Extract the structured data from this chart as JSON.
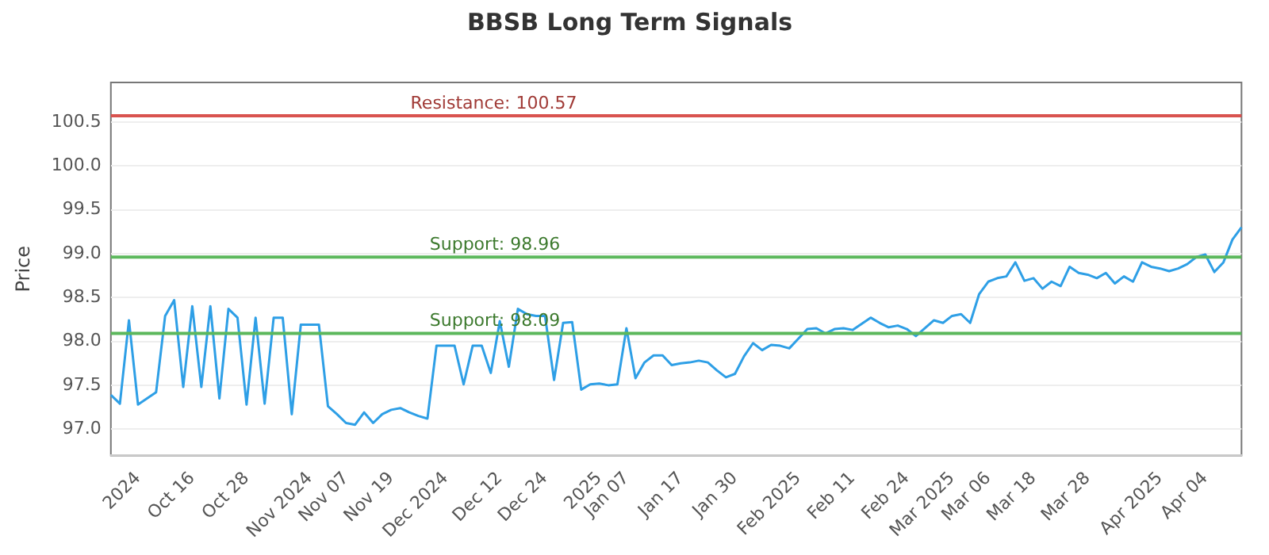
{
  "chart_data": {
    "type": "line",
    "title": "BBSB Long Term Signals",
    "ylabel": "Price",
    "categories": [
      null,
      null,
      null,
      "2024",
      null,
      null,
      null,
      null,
      null,
      "Oct 16",
      null,
      null,
      null,
      null,
      null,
      "Oct 28",
      null,
      null,
      null,
      null,
      null,
      null,
      "Nov 2024",
      null,
      null,
      null,
      "Nov 07",
      null,
      null,
      null,
      null,
      "Nov 19",
      null,
      null,
      null,
      null,
      null,
      "Dec 2024",
      null,
      null,
      null,
      null,
      null,
      "Dec 12",
      null,
      null,
      null,
      null,
      "Dec 24",
      null,
      null,
      null,
      null,
      null,
      "2025",
      null,
      null,
      "Jan 07",
      null,
      null,
      null,
      null,
      null,
      "Jan 17",
      null,
      null,
      null,
      null,
      null,
      "Jan 30",
      null,
      null,
      null,
      null,
      null,
      null,
      "Feb 2025",
      null,
      null,
      null,
      null,
      null,
      "Feb 11",
      null,
      null,
      null,
      null,
      null,
      "Feb 24",
      null,
      null,
      null,
      null,
      "Mar 2025",
      null,
      null,
      null,
      "Mar 06",
      null,
      null,
      null,
      null,
      "Mar 18",
      null,
      null,
      null,
      null,
      null,
      "Mar 28",
      null,
      null,
      null,
      null,
      null,
      null,
      null,
      "Apr 2025",
      null,
      null,
      null,
      null,
      "Apr 04",
      null,
      null,
      null,
      null
    ],
    "series": [
      {
        "color": "#2e9fe6",
        "values": [
          97.39,
          97.29,
          98.24,
          97.28,
          97.35,
          97.42,
          98.29,
          98.47,
          97.48,
          98.4,
          97.48,
          98.4,
          97.35,
          98.37,
          98.27,
          97.28,
          98.27,
          97.29,
          98.27,
          98.27,
          97.17,
          98.19,
          98.19,
          98.19,
          97.26,
          97.17,
          97.07,
          97.05,
          97.19,
          97.07,
          97.17,
          97.22,
          97.24,
          97.19,
          97.15,
          97.12,
          97.95,
          97.95,
          97.95,
          97.51,
          97.95,
          97.95,
          97.64,
          98.23,
          97.71,
          98.37,
          98.31,
          98.29,
          98.29,
          97.56,
          98.21,
          98.22,
          97.45,
          97.51,
          97.52,
          97.5,
          97.51,
          98.15,
          97.58,
          97.76,
          97.84,
          97.84,
          97.73,
          97.75,
          97.76,
          97.78,
          97.76,
          97.67,
          97.59,
          97.63,
          97.83,
          97.98,
          97.9,
          97.96,
          97.95,
          97.92,
          98.03,
          98.14,
          98.15,
          98.09,
          98.14,
          98.15,
          98.13,
          98.2,
          98.27,
          98.21,
          98.16,
          98.18,
          98.14,
          98.06,
          98.15,
          98.24,
          98.21,
          98.29,
          98.31,
          98.21,
          98.54,
          98.68,
          98.72,
          98.74,
          98.9,
          98.69,
          98.72,
          98.6,
          98.68,
          98.63,
          98.85,
          98.78,
          98.76,
          98.72,
          98.78,
          98.66,
          98.74,
          98.68,
          98.9,
          98.85,
          98.83,
          98.8,
          98.83,
          98.88,
          98.96,
          98.99,
          98.79,
          98.9,
          99.16,
          99.3
        ]
      }
    ],
    "ylim": [
      96.7,
      100.95
    ],
    "yticks": [
      {
        "value": 97,
        "label": "97.0"
      },
      {
        "value": 97.5,
        "label": "97.5"
      },
      {
        "value": 98,
        "label": "98.0"
      },
      {
        "value": 98.5,
        "label": "98.5"
      },
      {
        "value": 99,
        "label": "99.0"
      },
      {
        "value": 99.5,
        "label": "99.5"
      },
      {
        "value": 100,
        "label": "100.0"
      },
      {
        "value": 100.5,
        "label": "100.5"
      }
    ],
    "ref_lines": [
      {
        "axis": "y",
        "value": 100.57,
        "label": "Resistance: 100.57",
        "color": "#d9534f"
      },
      {
        "axis": "y",
        "value": 98.96,
        "label": "Support: 98.96",
        "color": "#5cb85c"
      },
      {
        "axis": "y",
        "value": 98.09,
        "label": "Support: 98.09",
        "color": "#5cb85c"
      }
    ],
    "grid": "y",
    "legend": false,
    "marker": "none",
    "line_style": "solid"
  }
}
